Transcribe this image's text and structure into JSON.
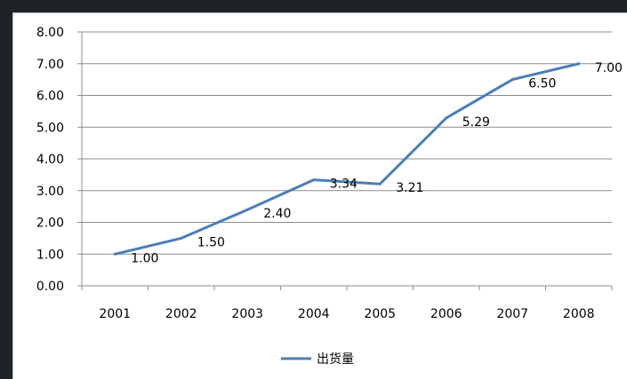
{
  "chart_data": {
    "type": "line",
    "title": "",
    "xlabel": "",
    "ylabel": "",
    "categories": [
      "2001",
      "2002",
      "2003",
      "2004",
      "2005",
      "2006",
      "2007",
      "2008"
    ],
    "series": [
      {
        "name": "出货量",
        "values": [
          1.0,
          1.5,
          2.4,
          3.34,
          3.21,
          5.29,
          6.5,
          7.0
        ],
        "labels": [
          "1.00",
          "1.50",
          "2.40",
          "3.34",
          "3.21",
          "5.29",
          "6.50",
          "7.00"
        ]
      }
    ],
    "ylim": [
      0,
      8
    ],
    "yticks": [
      "0.00",
      "1.00",
      "2.00",
      "3.00",
      "4.00",
      "5.00",
      "6.00",
      "7.00",
      "8.00"
    ],
    "grid": "horizontal",
    "legend": "bottom",
    "colors": {
      "series": "#4a7ebb",
      "grid": "#8c8c8c",
      "axis": "#8c8c8c"
    }
  }
}
